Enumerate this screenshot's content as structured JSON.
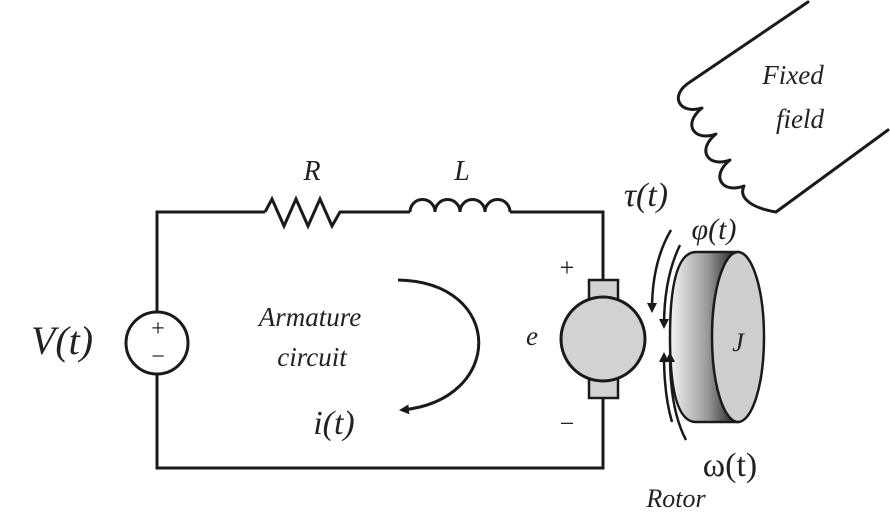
{
  "source": {
    "voltage_label": "V(t)",
    "plus": "+",
    "minus": "−"
  },
  "resistor": {
    "label": "R"
  },
  "inductor": {
    "label": "L"
  },
  "armature": {
    "line1": "Armature",
    "line2": "circuit",
    "current_label": "i(t)"
  },
  "motor": {
    "emf_label": "e",
    "plus": "+",
    "minus": "−"
  },
  "rotor": {
    "torque_label": "τ(t)",
    "angle_label": "φ(t)",
    "speed_label": "ω(t)",
    "inertia_label": "J",
    "name": "Rotor"
  },
  "field": {
    "line1": "Fixed",
    "line2": "field"
  },
  "colors": {
    "stroke": "#1a1a1a",
    "motor_fill": "#d2d2d2",
    "text": "#222222"
  }
}
